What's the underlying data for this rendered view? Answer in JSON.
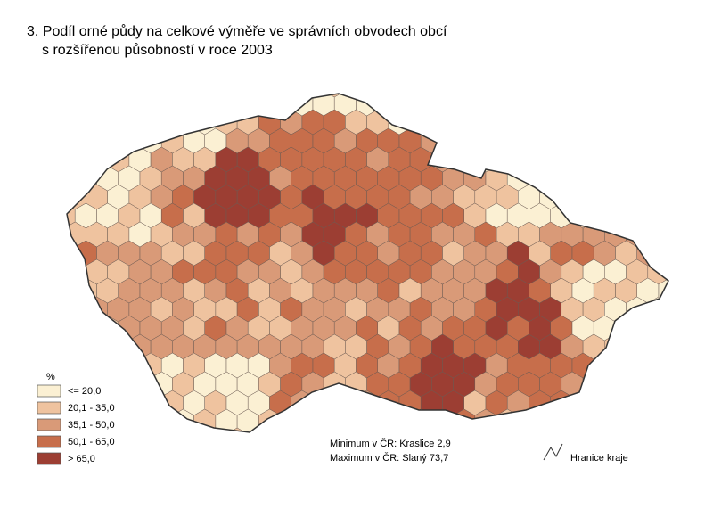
{
  "map": {
    "title_lines": [
      "3. Podíl orné půdy na celkové výměře ve správních obvodech obcí",
      "s rozšířenou působností v roce 2003"
    ],
    "legend": {
      "title": "%",
      "items": [
        {
          "label": "<= 20,0",
          "color": "#fbf0d3"
        },
        {
          "label": "20,1 - 35,0",
          "color": "#efc39f"
        },
        {
          "label": "35,1 - 50,0",
          "color": "#d99a78"
        },
        {
          "label": "50,1 - 65,0",
          "color": "#c76e4b"
        },
        {
          "label": "> 65,0",
          "color": "#9c3e33"
        }
      ]
    },
    "notes": [
      "Minimum v ČR: Kraslice 2,9",
      "Maximum v ČR: Slaný 73,7"
    ],
    "boundary_label": "Hranice kraje"
  }
}
